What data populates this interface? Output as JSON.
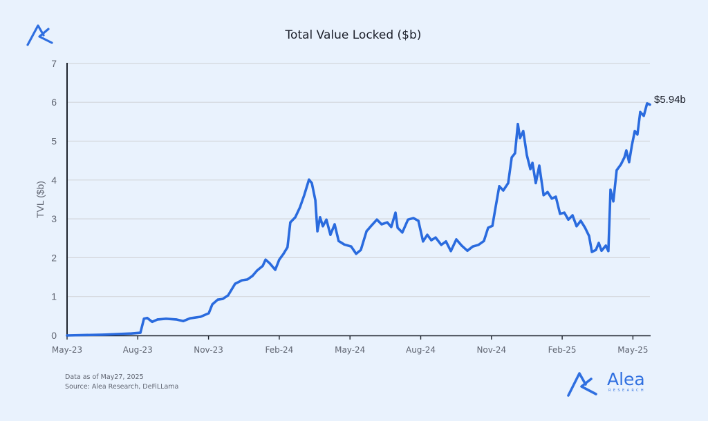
{
  "branding": {
    "name": "Alea",
    "subtitle": "RESEARCH",
    "logo_icon": "alea-logo-icon",
    "accent_color": "#2f6fe0"
  },
  "footnote": {
    "line1": "Data as of May27, 2025",
    "line2": "Source: Alea Research, DeFiLLama"
  },
  "chart_data": {
    "type": "line",
    "title": "Total Value Locked ($b)",
    "xlabel": "",
    "ylabel": "TVL ($b)",
    "ylim": [
      0,
      7
    ],
    "yticks": [
      "0",
      "1",
      "2",
      "3",
      "4",
      "5",
      "6",
      "7"
    ],
    "xticks": [
      "May-23",
      "Aug-23",
      "Nov-23",
      "Feb-24",
      "May-24",
      "Aug-24",
      "Nov-24",
      "Feb-25",
      "May-25"
    ],
    "x_unit": "months since May-23",
    "xlim": [
      0,
      24.8
    ],
    "grid": "horizontal",
    "legend": "none",
    "line_color": "#2a6bde",
    "end_label": "$5.94b",
    "series": [
      {
        "name": "TVL",
        "points": [
          [
            0.0,
            0.0
          ],
          [
            1.55,
            0.02
          ],
          [
            2.73,
            0.05
          ],
          [
            3.11,
            0.07
          ],
          [
            3.26,
            0.43
          ],
          [
            3.4,
            0.45
          ],
          [
            3.61,
            0.35
          ],
          [
            3.84,
            0.41
          ],
          [
            4.2,
            0.43
          ],
          [
            4.63,
            0.41
          ],
          [
            4.93,
            0.37
          ],
          [
            5.22,
            0.44
          ],
          [
            5.66,
            0.48
          ],
          [
            6.01,
            0.57
          ],
          [
            6.16,
            0.8
          ],
          [
            6.39,
            0.92
          ],
          [
            6.6,
            0.94
          ],
          [
            6.83,
            1.03
          ],
          [
            7.13,
            1.33
          ],
          [
            7.42,
            1.42
          ],
          [
            7.65,
            1.44
          ],
          [
            7.86,
            1.53
          ],
          [
            8.06,
            1.67
          ],
          [
            8.3,
            1.79
          ],
          [
            8.42,
            1.95
          ],
          [
            8.59,
            1.86
          ],
          [
            8.83,
            1.69
          ],
          [
            9.0,
            1.95
          ],
          [
            9.18,
            2.1
          ],
          [
            9.35,
            2.27
          ],
          [
            9.47,
            2.91
          ],
          [
            9.68,
            3.04
          ],
          [
            9.88,
            3.3
          ],
          [
            10.06,
            3.61
          ],
          [
            10.26,
            4.01
          ],
          [
            10.38,
            3.92
          ],
          [
            10.53,
            3.48
          ],
          [
            10.62,
            2.68
          ],
          [
            10.73,
            3.04
          ],
          [
            10.85,
            2.81
          ],
          [
            11.0,
            2.98
          ],
          [
            11.17,
            2.59
          ],
          [
            11.35,
            2.86
          ],
          [
            11.52,
            2.43
          ],
          [
            11.76,
            2.34
          ],
          [
            12.05,
            2.29
          ],
          [
            12.26,
            2.1
          ],
          [
            12.46,
            2.2
          ],
          [
            12.7,
            2.68
          ],
          [
            12.93,
            2.84
          ],
          [
            13.14,
            2.98
          ],
          [
            13.34,
            2.86
          ],
          [
            13.58,
            2.91
          ],
          [
            13.75,
            2.79
          ],
          [
            13.93,
            3.16
          ],
          [
            14.02,
            2.77
          ],
          [
            14.22,
            2.65
          ],
          [
            14.46,
            2.98
          ],
          [
            14.69,
            3.02
          ],
          [
            14.9,
            2.95
          ],
          [
            15.1,
            2.42
          ],
          [
            15.28,
            2.59
          ],
          [
            15.45,
            2.45
          ],
          [
            15.63,
            2.52
          ],
          [
            15.87,
            2.33
          ],
          [
            16.07,
            2.42
          ],
          [
            16.28,
            2.17
          ],
          [
            16.51,
            2.47
          ],
          [
            16.74,
            2.31
          ],
          [
            16.98,
            2.18
          ],
          [
            17.21,
            2.29
          ],
          [
            17.45,
            2.33
          ],
          [
            17.68,
            2.43
          ],
          [
            17.86,
            2.77
          ],
          [
            18.04,
            2.82
          ],
          [
            18.15,
            3.21
          ],
          [
            18.33,
            3.84
          ],
          [
            18.5,
            3.73
          ],
          [
            18.71,
            3.92
          ],
          [
            18.86,
            4.58
          ],
          [
            19.0,
            4.69
          ],
          [
            19.12,
            5.44
          ],
          [
            19.21,
            5.08
          ],
          [
            19.35,
            5.26
          ],
          [
            19.5,
            4.64
          ],
          [
            19.65,
            4.28
          ],
          [
            19.74,
            4.44
          ],
          [
            19.88,
            3.92
          ],
          [
            20.03,
            4.37
          ],
          [
            20.21,
            3.61
          ],
          [
            20.38,
            3.69
          ],
          [
            20.56,
            3.52
          ],
          [
            20.73,
            3.57
          ],
          [
            20.91,
            3.13
          ],
          [
            21.09,
            3.16
          ],
          [
            21.26,
            2.98
          ],
          [
            21.44,
            3.09
          ],
          [
            21.61,
            2.81
          ],
          [
            21.79,
            2.95
          ],
          [
            21.97,
            2.77
          ],
          [
            22.14,
            2.56
          ],
          [
            22.26,
            2.15
          ],
          [
            22.43,
            2.2
          ],
          [
            22.55,
            2.38
          ],
          [
            22.67,
            2.18
          ],
          [
            22.85,
            2.31
          ],
          [
            22.96,
            2.17
          ],
          [
            23.05,
            3.75
          ],
          [
            23.17,
            3.45
          ],
          [
            23.31,
            4.25
          ],
          [
            23.49,
            4.4
          ],
          [
            23.64,
            4.58
          ],
          [
            23.72,
            4.76
          ],
          [
            23.84,
            4.46
          ],
          [
            23.96,
            4.9
          ],
          [
            24.08,
            5.26
          ],
          [
            24.19,
            5.17
          ],
          [
            24.31,
            5.75
          ],
          [
            24.46,
            5.65
          ],
          [
            24.6,
            5.97
          ],
          [
            24.72,
            5.94
          ]
        ]
      }
    ]
  }
}
